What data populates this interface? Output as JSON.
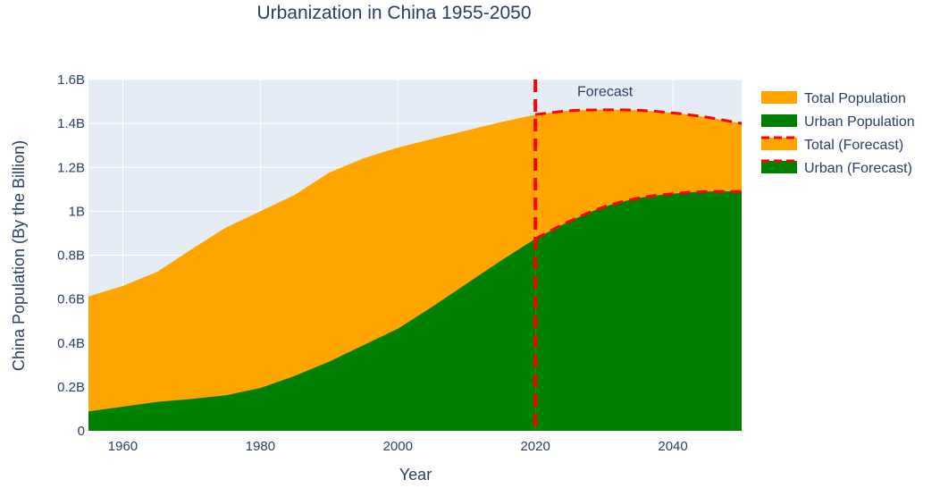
{
  "chart_data": {
    "type": "area",
    "title": "Urbanization in China 1955-2050",
    "xlabel": "Year",
    "ylabel": "China Population (By the Billion)",
    "xlim": [
      1955,
      2050
    ],
    "ylim": [
      0,
      1.6
    ],
    "x_ticks": [
      1960,
      1980,
      2000,
      2020,
      2040
    ],
    "y_ticks": [
      0,
      0.2,
      0.4,
      0.6,
      0.8,
      1.0,
      1.2,
      1.4,
      1.6
    ],
    "y_tick_labels": [
      "0",
      "0.2B",
      "0.4B",
      "0.6B",
      "0.8B",
      "1B",
      "1.2B",
      "1.4B",
      "1.6B"
    ],
    "grid": true,
    "legend_position": "right",
    "series": [
      {
        "name": "Total Population",
        "color": "#FFA500",
        "style": "filled-area",
        "x": [
          1955,
          1960,
          1965,
          1970,
          1975,
          1980,
          1985,
          1990,
          1995,
          2000,
          2005,
          2010,
          2015,
          2020
        ],
        "values": [
          0.612,
          0.66,
          0.724,
          0.827,
          0.926,
          1.0,
          1.075,
          1.176,
          1.241,
          1.29,
          1.33,
          1.368,
          1.406,
          1.44
        ]
      },
      {
        "name": "Urban Population",
        "color": "#008000",
        "style": "filled-area",
        "x": [
          1955,
          1960,
          1965,
          1970,
          1975,
          1980,
          1985,
          1990,
          1995,
          2000,
          2005,
          2010,
          2015,
          2020
        ],
        "values": [
          0.088,
          0.11,
          0.132,
          0.145,
          0.162,
          0.195,
          0.25,
          0.315,
          0.39,
          0.465,
          0.565,
          0.67,
          0.775,
          0.875
        ]
      },
      {
        "name": "Total (Forecast)",
        "color": "#FFA500",
        "line_color": "#FF0000",
        "style": "filled-area-dashed",
        "x": [
          2020,
          2025,
          2030,
          2035,
          2040,
          2045,
          2050
        ],
        "values": [
          1.44,
          1.458,
          1.462,
          1.46,
          1.448,
          1.428,
          1.4
        ]
      },
      {
        "name": "Urban (Forecast)",
        "color": "#008000",
        "line_color": "#FF0000",
        "style": "filled-area-dashed",
        "x": [
          2020,
          2025,
          2030,
          2035,
          2040,
          2045,
          2050
        ],
        "values": [
          0.875,
          0.955,
          1.02,
          1.06,
          1.08,
          1.09,
          1.09
        ]
      }
    ],
    "vertical_line": {
      "x": 2020,
      "color": "#FF0000",
      "style": "dashed"
    },
    "annotations": [
      {
        "text": "Forecast",
        "x": 2030,
        "y": 1.55
      }
    ]
  }
}
